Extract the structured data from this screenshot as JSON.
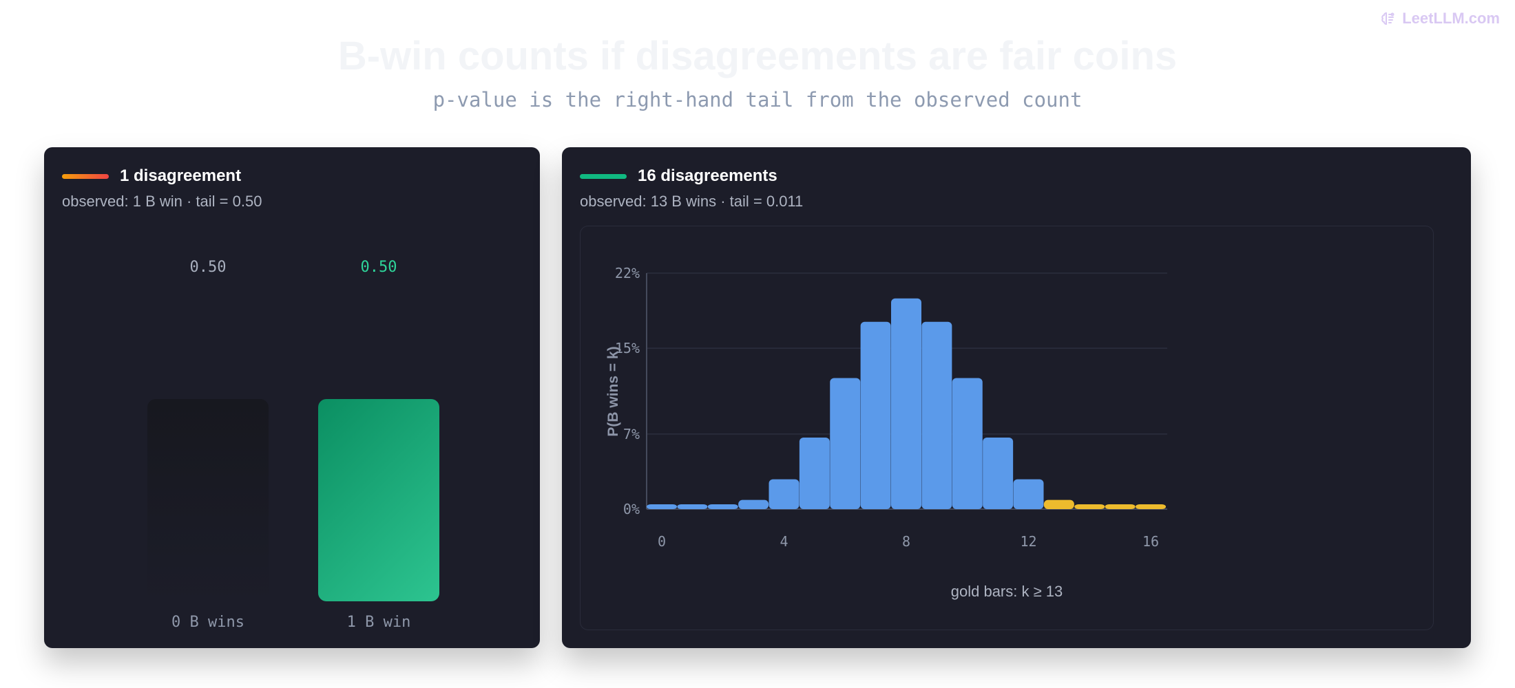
{
  "brand": {
    "text": "LeetLLM.com",
    "icon": "brain-icon",
    "color": "#d9c8f3"
  },
  "header": {
    "title": "B-win counts if disagreements are fair coins",
    "subtitle": "p-value is the right-hand tail from the observed count"
  },
  "panels": [
    {
      "title": "1 disagreement",
      "subtitle": "observed: 1 B win · tail = 0.50",
      "accent": [
        "#f59e0b",
        "#ef4444"
      ]
    },
    {
      "title": "16 disagreements",
      "subtitle": "observed: 13 B wins · tail = 0.011",
      "accent": [
        "#10b981",
        "#10b981"
      ]
    }
  ],
  "chart_data": [
    {
      "type": "bar",
      "categories": [
        "0 B wins",
        "1 B win"
      ],
      "values": [
        0.5,
        0.5
      ],
      "value_labels": [
        "0.50",
        "0.50"
      ],
      "colors": [
        "#141519",
        "#18a878"
      ],
      "value_label_colors": [
        "#a9b0bf",
        "#2ed59a"
      ],
      "highlight_index": 1
    },
    {
      "type": "bar",
      "x": [
        0,
        1,
        2,
        3,
        4,
        5,
        6,
        7,
        8,
        9,
        10,
        11,
        12,
        13,
        14,
        15,
        16
      ],
      "values": [
        1.53e-05,
        0.000244,
        0.00183,
        0.00854,
        0.0278,
        0.0667,
        0.1222,
        0.1746,
        0.1964,
        0.1746,
        0.1222,
        0.0667,
        0.0278,
        0.00854,
        0.00183,
        0.000244,
        1.53e-05
      ],
      "ylabel": "P(B wins = k)",
      "ytick_values": [
        0,
        0.07,
        0.15,
        0.22
      ],
      "ytick_labels": [
        "0%",
        "7%",
        "15%",
        "22%"
      ],
      "xtick_values": [
        0,
        4,
        8,
        12,
        16
      ],
      "xtick_labels": [
        "0",
        "4",
        "8",
        "12",
        "16"
      ],
      "ylim": [
        0,
        0.22
      ],
      "highlight_threshold": 13,
      "colors": {
        "base": "#5b9aea",
        "highlight": "#edbb2d"
      },
      "note": "gold bars: k ≥ 13",
      "grid": true
    }
  ]
}
